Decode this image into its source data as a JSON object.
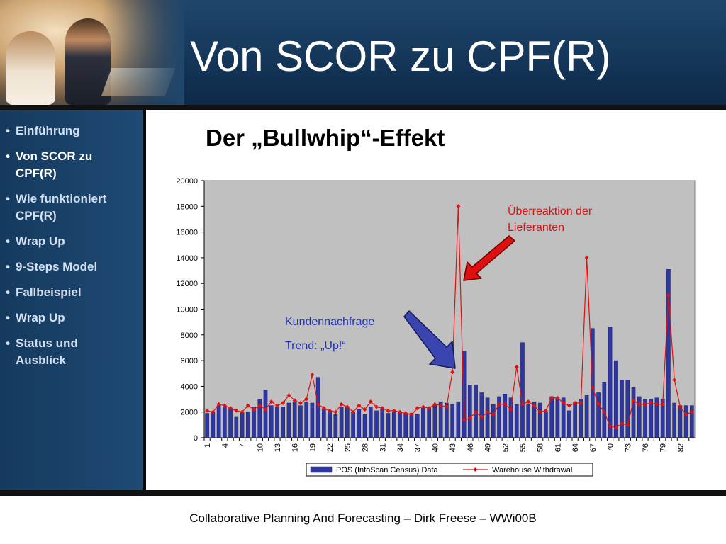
{
  "header": {
    "title": "Von SCOR zu CPF(R)"
  },
  "sidebar": {
    "items": [
      {
        "label": "Einführung",
        "cont": "",
        "active": false
      },
      {
        "label": "Von SCOR zu",
        "cont": "CPF(R)",
        "active": true
      },
      {
        "label": "Wie funktioniert",
        "cont": "CPF(R)",
        "active": false
      },
      {
        "label": "Wrap Up",
        "cont": "",
        "active": false
      },
      {
        "label": "9-Steps Model",
        "cont": "",
        "active": false
      },
      {
        "label": "Fallbeispiel",
        "cont": "",
        "active": false
      },
      {
        "label": "Wrap Up",
        "cont": "",
        "active": false
      },
      {
        "label": "Status und",
        "cont": "Ausblick",
        "active": false
      }
    ]
  },
  "main": {
    "subtitle": "Der „Bullwhip“-Effekt"
  },
  "footer": {
    "text": "Collaborative Planning And Forecasting – Dirk Freese – WWi00B"
  },
  "chart_data": {
    "type": "bar",
    "title": "",
    "xlabel": "",
    "ylabel": "",
    "ylim": [
      0,
      20000
    ],
    "yticks": [
      0,
      2000,
      4000,
      6000,
      8000,
      10000,
      12000,
      14000,
      16000,
      18000,
      20000
    ],
    "xticks": [
      "1",
      "4",
      "7",
      "10",
      "13",
      "16",
      "19",
      "22",
      "25",
      "28",
      "31",
      "34",
      "37",
      "40",
      "43",
      "46",
      "49",
      "52",
      "55",
      "58",
      "61",
      "64",
      "67",
      "70",
      "73",
      "76",
      "79",
      "82"
    ],
    "x": [
      1,
      2,
      3,
      4,
      5,
      6,
      7,
      8,
      9,
      10,
      11,
      12,
      13,
      14,
      15,
      16,
      17,
      18,
      19,
      20,
      21,
      22,
      23,
      24,
      25,
      26,
      27,
      28,
      29,
      30,
      31,
      32,
      33,
      34,
      35,
      36,
      37,
      38,
      39,
      40,
      41,
      42,
      43,
      44,
      45,
      46,
      47,
      48,
      49,
      50,
      51,
      52,
      53,
      54,
      55,
      56,
      57,
      58,
      59,
      60,
      61,
      62,
      63,
      64,
      65,
      66,
      67,
      68,
      69,
      70,
      71,
      72,
      73,
      74,
      75,
      76,
      77,
      78,
      79,
      80,
      81,
      82,
      83,
      84
    ],
    "series": [
      {
        "name": "POS (InfoScan Census) Data",
        "kind": "bar",
        "color": "#2e36a0",
        "values": [
          1900,
          2000,
          2500,
          2400,
          2300,
          1600,
          2000,
          2000,
          2400,
          3000,
          3700,
          2500,
          2400,
          2400,
          2700,
          2800,
          2500,
          2800,
          2700,
          4700,
          2200,
          2100,
          1800,
          2400,
          2400,
          2000,
          2200,
          1800,
          2400,
          2100,
          2200,
          1900,
          2000,
          2000,
          1900,
          1900,
          1800,
          2300,
          2300,
          2600,
          2800,
          2700,
          2600,
          2800,
          6700,
          4100,
          4100,
          3500,
          3100,
          2600,
          3200,
          3400,
          3100,
          2600,
          7400,
          2600,
          2800,
          2700,
          2000,
          3200,
          3100,
          3100,
          2100,
          2800,
          3000,
          3300,
          8500,
          3500,
          4300,
          8600,
          6000,
          4500,
          4500,
          3900,
          3200,
          3000,
          3000,
          3100,
          3000,
          13100,
          2700,
          2500,
          2500,
          2500
        ]
      },
      {
        "name": "Warehouse Withdrawal",
        "kind": "line",
        "color": "#e01010",
        "values": [
          2100,
          2000,
          2600,
          2500,
          2300,
          2100,
          2000,
          2500,
          2200,
          2500,
          2200,
          2800,
          2500,
          2700,
          3300,
          2900,
          2700,
          3000,
          4900,
          2600,
          2300,
          2100,
          2000,
          2600,
          2400,
          2000,
          2500,
          2200,
          2800,
          2400,
          2300,
          2100,
          2100,
          2000,
          1900,
          1800,
          2300,
          2400,
          2300,
          2600,
          2500,
          2400,
          5100,
          18000,
          1400,
          1500,
          2000,
          1600,
          2000,
          1800,
          2600,
          2600,
          2200,
          5500,
          2600,
          2800,
          2500,
          2000,
          2100,
          3100,
          3100,
          2700,
          2500,
          2700,
          2700,
          14000,
          3900,
          2600,
          2000,
          900,
          800,
          1100,
          1000,
          2900,
          2600,
          2600,
          2700,
          2600,
          2600,
          11100,
          4500,
          2400,
          1800,
          2000
        ]
      }
    ],
    "legend": {
      "position": "bottom",
      "entries": [
        "POS (InfoScan Census) Data",
        "Warehouse Withdrawal"
      ]
    },
    "annotations": [
      {
        "text1": "Überreaktion der",
        "text2": "Lieferanten",
        "color": "#e01010"
      },
      {
        "text1": "Kundennachfrage",
        "text2": "Trend: „Up!“",
        "color": "#2233aa"
      }
    ],
    "grid": false,
    "plot_background": "#c0c0c0"
  }
}
